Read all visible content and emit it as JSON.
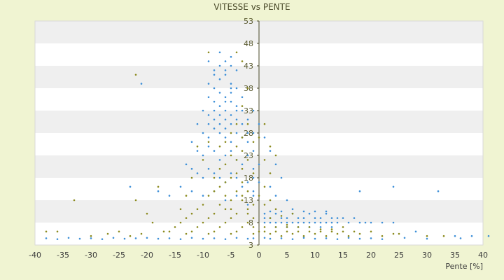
{
  "chart_data": {
    "type": "scatter",
    "title": "VITESSE vs PENTE",
    "xlabel": "Pente [%]",
    "ylabel": "",
    "xlim": [
      -40,
      40
    ],
    "ylim": [
      3,
      53
    ],
    "x_ticks": [
      -40,
      -35,
      -30,
      -25,
      -20,
      -15,
      -10,
      -5,
      0,
      5,
      10,
      15,
      20,
      25,
      30,
      35,
      40
    ],
    "y_ticks": [
      3,
      8,
      13,
      18,
      23,
      28,
      33,
      38,
      43,
      48,
      53
    ],
    "grid": "horizontal-bands",
    "legend": "none",
    "colors": {
      "blue": "#3d8fd8",
      "olive": "#8b8a1e",
      "band": "#efefef",
      "plot_bg": "#ffffff"
    },
    "series": [
      {
        "color": "#3d8fd8",
        "points": [
          [
            -7,
            46
          ],
          [
            -6,
            44
          ],
          [
            -5,
            45
          ],
          [
            -8,
            42
          ],
          [
            -7,
            40
          ],
          [
            -6,
            41
          ],
          [
            -5,
            39
          ],
          [
            -4,
            42
          ],
          [
            -8,
            38
          ],
          [
            -7,
            37
          ],
          [
            -6,
            36
          ],
          [
            -5,
            37
          ],
          [
            -4,
            38
          ],
          [
            -9,
            36
          ],
          [
            -8,
            35
          ],
          [
            -7,
            34
          ],
          [
            -6,
            33
          ],
          [
            -5,
            35
          ],
          [
            -4,
            34
          ],
          [
            -3,
            36
          ],
          [
            -10,
            33
          ],
          [
            -9,
            32
          ],
          [
            -8,
            31
          ],
          [
            -7,
            30
          ],
          [
            -6,
            31
          ],
          [
            -5,
            32
          ],
          [
            -4,
            31
          ],
          [
            -3,
            30
          ],
          [
            -11,
            30
          ],
          [
            -10,
            28
          ],
          [
            -9,
            27
          ],
          [
            -8,
            29
          ],
          [
            -7,
            28
          ],
          [
            -6,
            27
          ],
          [
            -5,
            26
          ],
          [
            -4,
            28
          ],
          [
            -3,
            27
          ],
          [
            -2,
            26
          ],
          [
            -12,
            26
          ],
          [
            -11,
            24
          ],
          [
            -10,
            23
          ],
          [
            -9,
            25
          ],
          [
            -8,
            24
          ],
          [
            -7,
            22
          ],
          [
            -6,
            23
          ],
          [
            -5,
            24
          ],
          [
            -4,
            22
          ],
          [
            -3,
            21
          ],
          [
            -2,
            23
          ],
          [
            -13,
            21
          ],
          [
            -12,
            20
          ],
          [
            -11,
            19
          ],
          [
            -10,
            18
          ],
          [
            -9,
            20
          ],
          [
            -8,
            19
          ],
          [
            -7,
            18
          ],
          [
            -6,
            17
          ],
          [
            -5,
            19
          ],
          [
            -4,
            18
          ],
          [
            -3,
            16
          ],
          [
            -2,
            17
          ],
          [
            -1,
            18
          ],
          [
            -14,
            16
          ],
          [
            -12,
            15
          ],
          [
            -10,
            14
          ],
          [
            -8,
            15
          ],
          [
            -6,
            13
          ],
          [
            -4,
            14
          ],
          [
            -2,
            12
          ],
          [
            -1,
            14
          ],
          [
            -23,
            16
          ],
          [
            -18,
            15
          ],
          [
            -16,
            14
          ],
          [
            -21,
            39
          ],
          [
            1,
            27
          ],
          [
            2,
            24
          ],
          [
            3,
            21
          ],
          [
            4,
            18
          ],
          [
            2,
            16
          ],
          [
            3,
            14
          ],
          [
            5,
            13
          ],
          [
            1,
            9
          ],
          [
            2,
            9
          ],
          [
            3,
            10
          ],
          [
            4,
            9
          ],
          [
            5,
            9
          ],
          [
            6,
            10
          ],
          [
            7,
            9
          ],
          [
            8,
            9
          ],
          [
            9,
            10
          ],
          [
            10,
            9
          ],
          [
            11,
            9
          ],
          [
            12,
            10
          ],
          [
            13,
            9
          ],
          [
            14,
            9
          ],
          [
            15,
            9
          ],
          [
            16,
            8
          ],
          [
            17,
            9
          ],
          [
            18,
            8
          ],
          [
            19,
            8
          ],
          [
            20,
            8
          ],
          [
            22,
            8
          ],
          [
            24,
            8
          ],
          [
            1,
            8
          ],
          [
            2,
            8
          ],
          [
            3,
            8
          ],
          [
            4,
            8
          ],
          [
            5,
            8
          ],
          [
            6,
            8
          ],
          [
            7,
            8
          ],
          [
            8,
            8
          ],
          [
            9,
            8
          ],
          [
            10,
            8
          ],
          [
            11,
            8
          ],
          [
            12,
            8
          ],
          [
            13,
            8
          ],
          [
            14,
            8
          ],
          [
            3,
            7
          ],
          [
            5,
            7
          ],
          [
            7,
            7
          ],
          [
            9,
            7
          ],
          [
            11,
            7
          ],
          [
            13,
            7
          ],
          [
            1,
            10
          ],
          [
            2,
            10.5
          ],
          [
            4,
            10.5
          ],
          [
            6,
            11
          ],
          [
            8,
            10.5
          ],
          [
            10,
            10.5
          ],
          [
            12,
            10.5
          ],
          [
            18,
            15
          ],
          [
            24,
            16
          ],
          [
            32,
            15
          ],
          [
            28,
            6
          ],
          [
            35,
            5
          ],
          [
            38,
            5
          ],
          [
            41,
            5
          ],
          [
            -38,
            4.5
          ],
          [
            -36,
            4.3
          ],
          [
            -34,
            4.6
          ],
          [
            -32,
            4.4
          ],
          [
            -30,
            4.5
          ],
          [
            -28,
            4.3
          ],
          [
            -26,
            4.6
          ],
          [
            -24,
            4.4
          ],
          [
            -22,
            4.5
          ],
          [
            -20,
            4.6
          ],
          [
            -18,
            4.4
          ],
          [
            -16,
            4.5
          ],
          [
            -14,
            4.3
          ],
          [
            -12,
            4.6
          ],
          [
            -10,
            4.4
          ],
          [
            -8,
            4.5
          ],
          [
            -6,
            4.3
          ],
          [
            -4,
            4.6
          ],
          [
            -2,
            4.4
          ],
          [
            -1,
            4.5
          ],
          [
            1,
            4.6
          ],
          [
            2,
            4.4
          ],
          [
            4,
            4.5
          ],
          [
            6,
            4.3
          ],
          [
            8,
            4.6
          ],
          [
            10,
            4.4
          ],
          [
            12,
            4.5
          ],
          [
            14,
            4.3
          ],
          [
            16,
            4.6
          ],
          [
            18,
            4.4
          ],
          [
            20,
            4.5
          ],
          [
            22,
            4.3
          ],
          [
            26,
            4.6
          ],
          [
            30,
            4.4
          ],
          [
            36,
            4.5
          ],
          [
            -9,
            44
          ],
          [
            -7,
            43
          ],
          [
            -6,
            42
          ],
          [
            -5,
            43
          ],
          [
            -8,
            41
          ],
          [
            -9,
            39
          ],
          [
            -5,
            38
          ],
          [
            -6,
            35
          ],
          [
            -8,
            33
          ],
          [
            -7,
            32
          ],
          [
            -6,
            29
          ],
          [
            -4,
            33
          ],
          [
            -5,
            30
          ],
          [
            -9,
            30
          ],
          [
            -3,
            33
          ],
          [
            -2,
            31
          ],
          [
            -1,
            33
          ],
          [
            0,
            30
          ],
          [
            -1,
            28
          ],
          [
            -2,
            28
          ],
          [
            -1,
            24
          ],
          [
            0,
            21
          ],
          [
            -1,
            20
          ],
          [
            0,
            17
          ],
          [
            -1,
            15
          ]
        ]
      },
      {
        "color": "#8b8a1e",
        "points": [
          [
            -9,
            46
          ],
          [
            -4,
            46
          ],
          [
            -3,
            44
          ],
          [
            -2,
            38
          ],
          [
            -3,
            34
          ],
          [
            -4,
            30
          ],
          [
            -5,
            28
          ],
          [
            -6,
            26
          ],
          [
            -4,
            25
          ],
          [
            -3,
            24
          ],
          [
            -5,
            23
          ],
          [
            -4,
            22
          ],
          [
            -6,
            21
          ],
          [
            -7,
            20
          ],
          [
            -3,
            20
          ],
          [
            -4,
            19
          ],
          [
            -5,
            18
          ],
          [
            -6,
            17
          ],
          [
            -7,
            16
          ],
          [
            -3,
            17
          ],
          [
            -8,
            15
          ],
          [
            -4,
            15
          ],
          [
            -2,
            15
          ],
          [
            -9,
            14
          ],
          [
            -5,
            13
          ],
          [
            -3,
            13
          ],
          [
            -10,
            12
          ],
          [
            -7,
            12
          ],
          [
            -1,
            12
          ],
          [
            -11,
            11
          ],
          [
            -6,
            11
          ],
          [
            -2,
            11
          ],
          [
            -12,
            10
          ],
          [
            -8,
            10
          ],
          [
            -4,
            10
          ],
          [
            -13,
            9
          ],
          [
            -9,
            9
          ],
          [
            -5,
            9
          ],
          [
            -1,
            9
          ],
          [
            -14,
            8
          ],
          [
            -10,
            8
          ],
          [
            -6,
            8
          ],
          [
            -2,
            8
          ],
          [
            -15,
            7
          ],
          [
            -11,
            7
          ],
          [
            -7,
            7
          ],
          [
            -3,
            7
          ],
          [
            -16,
            6
          ],
          [
            -12,
            6
          ],
          [
            -8,
            6
          ],
          [
            -4,
            6
          ],
          [
            -17,
            6
          ],
          [
            -13,
            5.5
          ],
          [
            -9,
            5.5
          ],
          [
            -5,
            5.5
          ],
          [
            -1,
            5.5
          ],
          [
            -19,
            8
          ],
          [
            -20,
            10
          ],
          [
            -22,
            13
          ],
          [
            -18,
            16
          ],
          [
            -22,
            41
          ],
          [
            -33,
            13
          ],
          [
            -38,
            6
          ],
          [
            -36,
            6
          ],
          [
            -30,
            5
          ],
          [
            -27,
            5.5
          ],
          [
            -25,
            6
          ],
          [
            -23,
            5
          ],
          [
            -21,
            5.5
          ],
          [
            1,
            6
          ],
          [
            2,
            5.5
          ],
          [
            3,
            6
          ],
          [
            4,
            5
          ],
          [
            5,
            6
          ],
          [
            6,
            5.5
          ],
          [
            7,
            6
          ],
          [
            8,
            5
          ],
          [
            9,
            6
          ],
          [
            10,
            5.5
          ],
          [
            11,
            6
          ],
          [
            12,
            5
          ],
          [
            13,
            6
          ],
          [
            14,
            5.5
          ],
          [
            15,
            6
          ],
          [
            16,
            5
          ],
          [
            18,
            5.5
          ],
          [
            20,
            6
          ],
          [
            22,
            5
          ],
          [
            24,
            5.5
          ],
          [
            1,
            7
          ],
          [
            3,
            7
          ],
          [
            5,
            7
          ],
          [
            7,
            7
          ],
          [
            9,
            7
          ],
          [
            11,
            6.5
          ],
          [
            13,
            6.5
          ],
          [
            2,
            9
          ],
          [
            4,
            9.5
          ],
          [
            6,
            10
          ],
          [
            3,
            11
          ],
          [
            1,
            12
          ],
          [
            2,
            13
          ],
          [
            0,
            14
          ],
          [
            1,
            16
          ],
          [
            2,
            19
          ],
          [
            1,
            22
          ],
          [
            3,
            23
          ],
          [
            2,
            25
          ],
          [
            0,
            27
          ],
          [
            1,
            30
          ],
          [
            5,
            7.5
          ],
          [
            15,
            7
          ],
          [
            17,
            6
          ],
          [
            25,
            5.5
          ],
          [
            30,
            5
          ],
          [
            33,
            5
          ],
          [
            -2,
            30
          ],
          [
            -3,
            27
          ],
          [
            -1,
            26
          ],
          [
            -2,
            22
          ],
          [
            -1,
            19
          ],
          [
            -3,
            14
          ],
          [
            -2,
            10
          ],
          [
            -1,
            7
          ],
          [
            0,
            6
          ],
          [
            -5,
            11
          ],
          [
            -6,
            14
          ],
          [
            -8,
            18
          ],
          [
            -10,
            22
          ],
          [
            -11,
            25
          ],
          [
            -9,
            26
          ],
          [
            -7,
            25
          ],
          [
            -12,
            18
          ],
          [
            -13,
            14
          ],
          [
            -14,
            11
          ]
        ]
      }
    ]
  }
}
